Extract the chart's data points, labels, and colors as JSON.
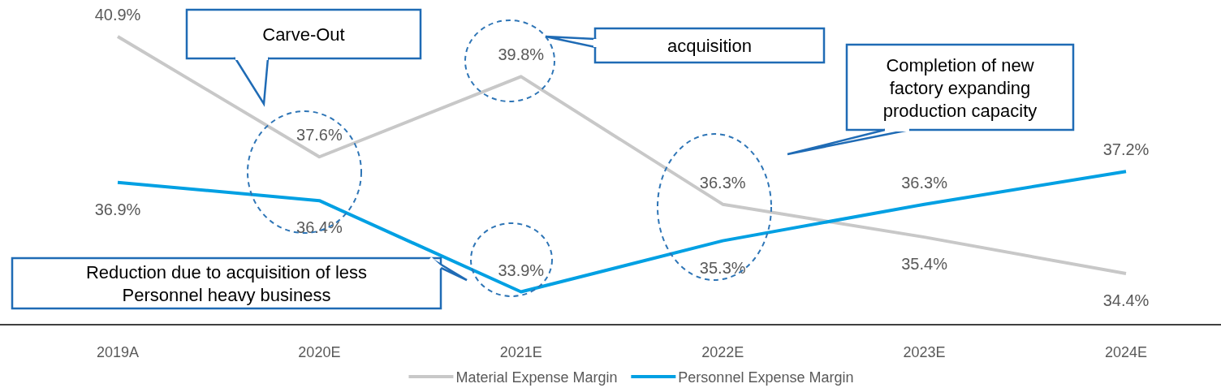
{
  "chart_data": {
    "type": "line",
    "categories": [
      "2019A",
      "2020E",
      "2021E",
      "2022E",
      "2023E",
      "2024E"
    ],
    "series": [
      {
        "name": "Material Expense Margin",
        "color": "#c8c8c8",
        "values": [
          40.9,
          37.6,
          39.8,
          36.3,
          35.4,
          34.4
        ],
        "value_labels": [
          "40.9%",
          "37.6%",
          "39.8%",
          "36.3%",
          "35.4%",
          "34.4%"
        ]
      },
      {
        "name": "Personnel Expense Margin",
        "color": "#00a0e3",
        "values": [
          36.9,
          36.4,
          33.9,
          35.3,
          36.3,
          37.2
        ],
        "value_labels": [
          "36.9%",
          "36.4%",
          "33.9%",
          "35.3%",
          "36.3%",
          "37.2%"
        ]
      }
    ],
    "ylim": [
      33,
      41.9
    ],
    "legend": "bottom",
    "marker": "none",
    "line_style": "solid",
    "annotations": [
      "Carve-Out",
      "acquisition",
      "Completion of new factory expanding production capacity",
      "Reduction due to acquisition of less Personnel heavy business"
    ]
  }
}
